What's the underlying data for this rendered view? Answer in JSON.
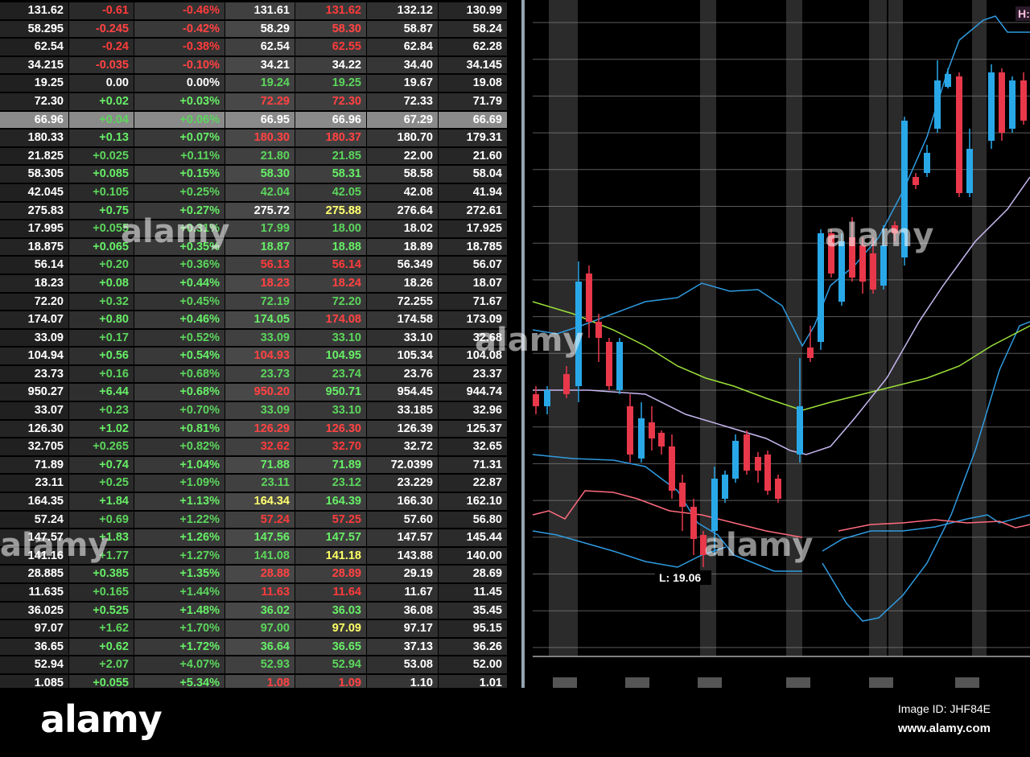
{
  "quotes": [
    [
      "131.62",
      "-0.61",
      "-0.46%",
      "131.61",
      "131.62",
      "132.12",
      "130.99"
    ],
    [
      "58.295",
      "-0.245",
      "-0.42%",
      "58.29",
      "58.30",
      "58.87",
      "58.24"
    ],
    [
      "62.54",
      "-0.24",
      "-0.38%",
      "62.54",
      "62.55",
      "62.84",
      "62.28"
    ],
    [
      "34.215",
      "-0.035",
      "-0.10%",
      "34.21",
      "34.22",
      "34.40",
      "34.145"
    ],
    [
      "19.25",
      "0.00",
      "0.00%",
      "19.24",
      "19.25",
      "19.67",
      "19.08"
    ],
    [
      "72.30",
      "+0.02",
      "+0.03%",
      "72.29",
      "72.30",
      "72.33",
      "71.79"
    ],
    [
      "66.96",
      "+0.04",
      "+0.06%",
      "66.95",
      "66.96",
      "67.29",
      "66.69"
    ],
    [
      "180.33",
      "+0.13",
      "+0.07%",
      "180.30",
      "180.37",
      "180.70",
      "179.31"
    ],
    [
      "21.825",
      "+0.025",
      "+0.11%",
      "21.80",
      "21.85",
      "22.00",
      "21.60"
    ],
    [
      "58.305",
      "+0.085",
      "+0.15%",
      "58.30",
      "58.31",
      "58.58",
      "58.04"
    ],
    [
      "42.045",
      "+0.105",
      "+0.25%",
      "42.04",
      "42.05",
      "42.08",
      "41.94"
    ],
    [
      "275.83",
      "+0.75",
      "+0.27%",
      "275.72",
      "275.88",
      "276.64",
      "272.61"
    ],
    [
      "17.995",
      "+0.055",
      "+0.31%",
      "17.99",
      "18.00",
      "18.02",
      "17.925"
    ],
    [
      "18.875",
      "+0.065",
      "+0.35%",
      "18.87",
      "18.88",
      "18.89",
      "18.785"
    ],
    [
      "56.14",
      "+0.20",
      "+0.36%",
      "56.13",
      "56.14",
      "56.349",
      "56.07"
    ],
    [
      "18.23",
      "+0.08",
      "+0.44%",
      "18.23",
      "18.24",
      "18.26",
      "18.07"
    ],
    [
      "72.20",
      "+0.32",
      "+0.45%",
      "72.19",
      "72.20",
      "72.255",
      "71.67"
    ],
    [
      "174.07",
      "+0.80",
      "+0.46%",
      "174.05",
      "174.08",
      "174.58",
      "173.09"
    ],
    [
      "33.09",
      "+0.17",
      "+0.52%",
      "33.09",
      "33.10",
      "33.10",
      "32.68"
    ],
    [
      "104.94",
      "+0.56",
      "+0.54%",
      "104.93",
      "104.95",
      "105.34",
      "104.08"
    ],
    [
      "23.73",
      "+0.16",
      "+0.68%",
      "23.73",
      "23.74",
      "23.76",
      "23.37"
    ],
    [
      "950.27",
      "+6.44",
      "+0.68%",
      "950.20",
      "950.71",
      "954.45",
      "944.74"
    ],
    [
      "33.07",
      "+0.23",
      "+0.70%",
      "33.09",
      "33.10",
      "33.185",
      "32.96"
    ],
    [
      "126.30",
      "+1.02",
      "+0.81%",
      "126.29",
      "126.30",
      "126.39",
      "125.37"
    ],
    [
      "32.705",
      "+0.265",
      "+0.82%",
      "32.62",
      "32.70",
      "32.72",
      "32.65"
    ],
    [
      "71.89",
      "+0.74",
      "+1.04%",
      "71.88",
      "71.89",
      "72.0399",
      "71.31"
    ],
    [
      "23.11",
      "+0.25",
      "+1.09%",
      "23.11",
      "23.12",
      "23.229",
      "22.87"
    ],
    [
      "164.35",
      "+1.84",
      "+1.13%",
      "164.34",
      "164.39",
      "166.30",
      "162.10"
    ],
    [
      "57.24",
      "+0.69",
      "+1.22%",
      "57.24",
      "57.25",
      "57.60",
      "56.80"
    ],
    [
      "147.57",
      "+1.83",
      "+1.26%",
      "147.56",
      "147.57",
      "147.57",
      "145.44"
    ],
    [
      "141.16",
      "+1.77",
      "+1.27%",
      "141.08",
      "141.18",
      "143.88",
      "140.00"
    ],
    [
      "28.885",
      "+0.385",
      "+1.35%",
      "28.88",
      "28.89",
      "29.19",
      "28.69"
    ],
    [
      "11.635",
      "+0.165",
      "+1.44%",
      "11.63",
      "11.64",
      "11.67",
      "11.45"
    ],
    [
      "36.025",
      "+0.525",
      "+1.48%",
      "36.02",
      "36.03",
      "36.08",
      "35.45"
    ],
    [
      "97.07",
      "+1.62",
      "+1.70%",
      "97.00",
      "97.09",
      "97.17",
      "95.15"
    ],
    [
      "36.65",
      "+0.62",
      "+1.72%",
      "36.64",
      "36.65",
      "37.13",
      "36.26"
    ],
    [
      "52.94",
      "+2.07",
      "+4.07%",
      "52.93",
      "52.94",
      "53.08",
      "52.00"
    ],
    [
      "1.085",
      "+0.055",
      "+5.34%",
      "1.08",
      "1.09",
      "1.10",
      "1.01"
    ]
  ],
  "bid_colors": [
    "wh",
    "wh",
    "wh",
    "wh",
    "up",
    "dn",
    "wh",
    "dn",
    "up",
    "up",
    "up",
    "wh",
    "up",
    "up",
    "dn",
    "dn",
    "up",
    "up",
    "up",
    "dn",
    "up",
    "dn",
    "up",
    "dn",
    "dn",
    "up",
    "up",
    "yl",
    "dn",
    "up",
    "up",
    "dn",
    "dn",
    "up",
    "up",
    "up",
    "up",
    "dn"
  ],
  "ask_colors": [
    "dn",
    "dn",
    "dn",
    "wh",
    "up",
    "dn",
    "wh",
    "dn",
    "up",
    "up",
    "up",
    "yl",
    "up",
    "up",
    "dn",
    "dn",
    "up",
    "dn",
    "up",
    "up",
    "up",
    "up",
    "up",
    "dn",
    "dn",
    "up",
    "up",
    "up",
    "dn",
    "up",
    "yl",
    "dn",
    "dn",
    "up",
    "yl",
    "up",
    "up",
    "dn"
  ],
  "selected_row": 6,
  "chart": {
    "low_label": "L: 19.06",
    "high_label": "H:"
  },
  "watermark": {
    "logo": "alamy",
    "image_id": "Image ID: JHF84E",
    "site": "www.alamy.com",
    "overlay": "alamy"
  },
  "colors": {
    "up": "#5cd65c",
    "down": "#ff3b3b",
    "candle_up": "#29a8e8",
    "candle_down": "#e8384a",
    "band": "#2f9be0",
    "ma_green": "#9be03a",
    "ma_lilac": "#c7b8f0",
    "ma_pink": "#ff6b7d"
  }
}
